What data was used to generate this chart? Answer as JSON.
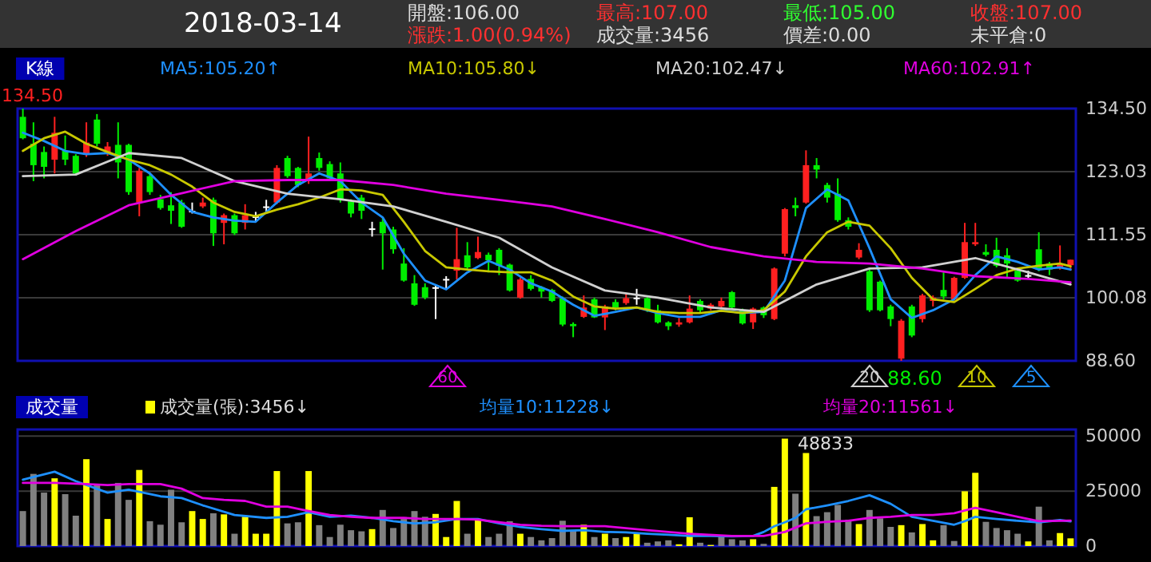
{
  "chart_data": [
    {
      "type": "other",
      "title": "2018-03-14",
      "annotations": [
        "開盤:106.00",
        "最高:107.00",
        "最低:105.00",
        "收盤:107.00",
        "漲跌:1.00(0.94%)",
        "成交量:3456",
        "價差:0.00",
        "未平倉:0"
      ]
    },
    {
      "type": "candlestick",
      "title": "K線",
      "categories": [
        null,
        null,
        null,
        null,
        null,
        null,
        null,
        null,
        null,
        null,
        null,
        null,
        null,
        null,
        null,
        null,
        null,
        null,
        null,
        null,
        null,
        null,
        null,
        null,
        null,
        null,
        null,
        null,
        null,
        null,
        null,
        null,
        null,
        null,
        null,
        null,
        null,
        null,
        null,
        null,
        null,
        null,
        null,
        null,
        null,
        null,
        null,
        null,
        null,
        null,
        null,
        null,
        null,
        null,
        null,
        null,
        null,
        null,
        null,
        null,
        null,
        null,
        null,
        null,
        null,
        null,
        null,
        null,
        null,
        null,
        null,
        null,
        null,
        null,
        null,
        null,
        null,
        null,
        null,
        null,
        null,
        null,
        null,
        null,
        null,
        null,
        null,
        null,
        null,
        null,
        null,
        null,
        null,
        null,
        null,
        null,
        null,
        null,
        null,
        null
      ],
      "ohlc": [
        [
          133.0,
          134.5,
          128.9,
          129.1
        ],
        [
          128.1,
          132.0,
          121.3,
          124.2
        ],
        [
          126.6,
          127.6,
          121.8,
          123.9
        ],
        [
          125.2,
          133.0,
          122.7,
          130.1
        ],
        [
          126.8,
          129.6,
          124.2,
          125.2
        ],
        [
          125.9,
          126.2,
          122.3,
          122.7
        ],
        [
          126.2,
          132.0,
          125.7,
          128.3
        ],
        [
          132.5,
          133.5,
          127.6,
          128.1
        ],
        [
          126.4,
          128.4,
          125.9,
          127.6
        ],
        [
          127.9,
          132.0,
          121.8,
          124.7
        ],
        [
          127.9,
          128.1,
          118.8,
          119.3
        ],
        [
          117.4,
          123.7,
          114.9,
          123.2
        ],
        [
          122.2,
          122.7,
          118.8,
          119.3
        ],
        [
          118.0,
          118.8,
          116.1,
          116.4
        ],
        [
          116.9,
          119.3,
          113.5,
          115.9
        ],
        [
          117.4,
          117.9,
          112.8,
          113.0
        ],
        [
          115.9,
          117.4,
          115.4,
          115.9
        ],
        [
          116.7,
          118.3,
          116.4,
          117.4
        ],
        [
          117.9,
          118.3,
          109.5,
          111.8
        ],
        [
          113.7,
          115.4,
          109.8,
          115.1
        ],
        [
          115.1,
          115.4,
          111.5,
          111.8
        ],
        [
          113.7,
          117.1,
          112.5,
          115.1
        ],
        [
          114.9,
          115.7,
          113.9,
          114.9
        ],
        [
          116.7,
          117.9,
          115.4,
          116.7
        ],
        [
          117.4,
          124.2,
          117.1,
          123.7
        ],
        [
          125.5,
          125.9,
          121.9,
          122.2
        ],
        [
          123.7,
          123.9,
          120.2,
          120.6
        ],
        [
          121.6,
          129.4,
          120.8,
          122.7
        ],
        [
          125.5,
          126.5,
          123.2,
          123.7
        ],
        [
          124.4,
          124.9,
          121.3,
          121.8
        ],
        [
          122.7,
          124.7,
          117.4,
          117.9
        ],
        [
          117.6,
          118.0,
          114.7,
          115.4
        ],
        [
          118.3,
          118.8,
          114.4,
          115.9
        ],
        [
          112.7,
          113.9,
          111.2,
          112.7
        ],
        [
          113.9,
          114.7,
          105.2,
          111.8
        ],
        [
          112.5,
          113.0,
          108.1,
          108.9
        ],
        [
          106.3,
          109.1,
          103.0,
          103.2
        ],
        [
          102.7,
          104.2,
          98.6,
          98.8
        ],
        [
          102.0,
          102.7,
          99.8,
          100.1
        ],
        [
          102.0,
          102.4,
          96.2,
          102.0
        ],
        [
          103.5,
          104.0,
          101.7,
          103.5
        ],
        [
          105.0,
          112.8,
          103.4,
          107.1
        ],
        [
          107.8,
          110.2,
          105.3,
          105.6
        ],
        [
          107.3,
          111.2,
          107.1,
          108.4
        ],
        [
          107.9,
          108.3,
          104.7,
          106.9
        ],
        [
          108.8,
          109.1,
          104.2,
          105.9
        ],
        [
          106.1,
          106.3,
          101.2,
          101.4
        ],
        [
          100.1,
          103.7,
          99.9,
          103.4
        ],
        [
          103.5,
          104.2,
          101.4,
          101.7
        ],
        [
          102.0,
          102.2,
          100.1,
          101.2
        ],
        [
          101.5,
          101.7,
          99.3,
          99.5
        ],
        [
          100.0,
          100.3,
          94.9,
          95.2
        ],
        [
          95.3,
          95.6,
          92.9,
          94.9
        ],
        [
          96.6,
          100.5,
          96.4,
          98.3
        ],
        [
          99.8,
          100.1,
          96.4,
          96.5
        ],
        [
          96.5,
          98.8,
          94.2,
          98.5
        ],
        [
          99.3,
          99.8,
          97.8,
          98.3
        ],
        [
          99.1,
          100.8,
          98.8,
          100.0
        ],
        [
          100.1,
          101.7,
          98.8,
          100.1
        ],
        [
          100.0,
          100.3,
          97.5,
          97.8
        ],
        [
          97.8,
          98.8,
          95.4,
          95.6
        ],
        [
          95.6,
          95.8,
          94.2,
          94.9
        ],
        [
          95.2,
          96.4,
          94.8,
          95.6
        ],
        [
          95.6,
          100.5,
          95.4,
          98.1
        ],
        [
          99.5,
          99.8,
          97.2,
          97.8
        ],
        [
          98.1,
          99.1,
          97.8,
          98.8
        ],
        [
          98.5,
          100.1,
          98.1,
          99.5
        ],
        [
          101.1,
          101.3,
          98.1,
          98.3
        ],
        [
          97.8,
          98.1,
          95.2,
          95.4
        ],
        [
          95.6,
          98.3,
          94.4,
          98.1
        ],
        [
          98.3,
          98.5,
          96.4,
          96.9
        ],
        [
          96.2,
          105.6,
          96.0,
          105.4
        ],
        [
          108.1,
          116.4,
          107.6,
          116.2
        ],
        [
          116.9,
          118.3,
          114.9,
          116.4
        ],
        [
          117.4,
          126.9,
          117.2,
          124.2
        ],
        [
          124.2,
          125.5,
          121.8,
          123.4
        ],
        [
          120.6,
          121.0,
          117.4,
          118.3
        ],
        [
          119.0,
          121.8,
          113.9,
          114.2
        ],
        [
          114.2,
          114.7,
          112.5,
          113.0
        ],
        [
          107.4,
          110.0,
          107.1,
          108.8
        ],
        [
          104.9,
          105.2,
          97.5,
          97.8
        ],
        [
          103.0,
          103.2,
          97.6,
          97.8
        ],
        [
          98.5,
          98.8,
          94.9,
          96.2
        ],
        [
          89.0,
          96.2,
          88.6,
          95.9
        ],
        [
          98.5,
          98.8,
          92.9,
          93.2
        ],
        [
          96.2,
          100.8,
          95.6,
          100.5
        ],
        [
          99.5,
          100.5,
          98.5,
          100.1
        ],
        [
          101.5,
          104.7,
          99.8,
          100.3
        ],
        [
          99.8,
          103.9,
          99.6,
          103.7
        ],
        [
          103.7,
          113.7,
          103.5,
          110.2
        ],
        [
          109.8,
          113.7,
          109.5,
          110.2
        ],
        [
          108.4,
          109.8,
          107.6,
          107.9
        ],
        [
          108.8,
          111.0,
          105.6,
          105.9
        ],
        [
          107.8,
          109.1,
          103.7,
          106.3
        ],
        [
          105.0,
          105.4,
          103.0,
          103.2
        ],
        [
          104.2,
          105.0,
          103.7,
          104.2
        ],
        [
          108.9,
          112.0,
          104.9,
          105.2
        ],
        [
          106.3,
          106.6,
          104.2,
          105.2
        ],
        [
          105.4,
          109.6,
          105.2,
          106.3
        ],
        [
          106,
          107,
          105,
          107
        ]
      ],
      "series": [
        {
          "name": "MA5:105.20↑",
          "color": "#1e90ff",
          "type": "line",
          "values": [
            130.1,
            null,
            128.6,
            null,
            126.8,
            null,
            126.2,
            null,
            126.4,
            null,
            125.2,
            null,
            122.7,
            null,
            118.8,
            null,
            115.7,
            null,
            114.7,
            null,
            114.1,
            null,
            113.9,
            null,
            117.4,
            null,
            120.6,
            null,
            122.7,
            null,
            121.3,
            null,
            117.4,
            null,
            114.7,
            null,
            108.1,
            null,
            103.2,
            null,
            101.6,
            null,
            104.7,
            null,
            106.8,
            null,
            105.2,
            null,
            102.7,
            null,
            101.2,
            null,
            98.8,
            null,
            96.8,
            null,
            97.5,
            null,
            98.3,
            null,
            97.3,
            null,
            96.6,
            null,
            96.6,
            null,
            97.8,
            null,
            97.3,
            null,
            97.5,
            null,
            103.2,
            null,
            116.4,
            null,
            119.8,
            null,
            117.8,
            null,
            109.1,
            null,
            99.8,
            null,
            96.4,
            null,
            97.8,
            null,
            99.8,
            null,
            104.2,
            null,
            107.6,
            null,
            106.6,
            null,
            105.2,
            null,
            105.6,
            105.2
          ]
        },
        {
          "name": "MA10:105.80↓",
          "color": "#c8c800",
          "type": "line",
          "values": [
            126.8,
            null,
            129.1,
            null,
            130.3,
            null,
            128.1,
            null,
            126.6,
            null,
            125.2,
            null,
            124.2,
            null,
            122.5,
            null,
            120.3,
            null,
            117.4,
            null,
            115.7,
            null,
            114.9,
            null,
            116.1,
            null,
            117.1,
            null,
            118.3,
            null,
            119.8,
            null,
            119.6,
            null,
            118.8,
            null,
            113.9,
            null,
            108.6,
            null,
            105.6,
            null,
            105.2,
            null,
            104.9,
            null,
            104.7,
            null,
            104.7,
            null,
            103.2,
            null,
            100.3,
            null,
            98.5,
            null,
            98.1,
            null,
            98.3,
            null,
            97.5,
            null,
            97.3,
            null,
            97.3,
            null,
            97.7,
            null,
            97.3,
            null,
            97.8,
            null,
            101.2,
            null,
            107.6,
            null,
            112.0,
            null,
            113.9,
            null,
            113.2,
            null,
            109.1,
            null,
            103.7,
            null,
            99.8,
            null,
            99.3,
            null,
            101.7,
            null,
            104.2,
            null,
            105.4,
            null,
            105.9,
            null,
            106.3,
            105.8
          ]
        },
        {
          "name": "MA20:102.47↓",
          "color": "#d0d0d0",
          "type": "line",
          "values": [
            122.2,
            null,
            null,
            null,
            null,
            122.5,
            null,
            null,
            null,
            null,
            126.4,
            null,
            null,
            null,
            null,
            125.5,
            null,
            null,
            null,
            null,
            121.3,
            null,
            null,
            null,
            null,
            119.0,
            null,
            null,
            null,
            null,
            118.0,
            null,
            null,
            null,
            null,
            116.7,
            null,
            null,
            null,
            null,
            113.9,
            null,
            null,
            null,
            null,
            111.0,
            null,
            null,
            null,
            null,
            105.6,
            null,
            null,
            null,
            null,
            101.4,
            null,
            null,
            null,
            null,
            100.1,
            null,
            null,
            null,
            null,
            98.3,
            null,
            null,
            null,
            null,
            97.5,
            null,
            null,
            null,
            null,
            102.5,
            null,
            null,
            null,
            null,
            105.4,
            null,
            null,
            null,
            null,
            105.6,
            null,
            null,
            null,
            null,
            107.3,
            null,
            null,
            null,
            null,
            104.7,
            null,
            null,
            null,
            102.5
          ]
        },
        {
          "name": "MA60:102.91↑",
          "color": "#e000e0",
          "type": "line",
          "values": [
            107.1,
            null,
            null,
            null,
            null,
            112.2,
            null,
            null,
            null,
            null,
            116.9,
            null,
            null,
            null,
            null,
            119.1,
            null,
            null,
            null,
            null,
            121.3,
            null,
            null,
            null,
            null,
            121.5,
            null,
            null,
            null,
            null,
            121.5,
            null,
            null,
            null,
            null,
            120.6,
            null,
            null,
            null,
            null,
            119.0,
            null,
            null,
            null,
            null,
            117.9,
            null,
            null,
            null,
            null,
            116.7,
            null,
            null,
            null,
            null,
            114.4,
            null,
            null,
            null,
            null,
            112.0,
            null,
            null,
            null,
            null,
            109.3,
            null,
            null,
            null,
            null,
            107.6,
            null,
            null,
            null,
            null,
            106.6,
            null,
            null,
            null,
            null,
            106.3,
            null,
            null,
            null,
            null,
            105.4,
            null,
            null,
            null,
            null,
            104.0,
            null,
            null,
            null,
            null,
            103.5,
            null,
            null,
            null,
            102.9
          ]
        }
      ],
      "ylim": [
        88.6,
        134.5
      ],
      "yticks": [
        {
          "value": 88.6,
          "label": "88.60"
        },
        {
          "value": 100.08,
          "label": "100.08"
        },
        {
          "value": 111.55,
          "label": "111.55"
        },
        {
          "value": 123.03,
          "label": "123.03"
        },
        {
          "value": 134.5,
          "label": "134.50"
        }
      ],
      "grid": "y",
      "legend": "top",
      "annotations": [
        "134.50",
        "88.60",
        "60",
        "20",
        "10",
        "5"
      ]
    },
    {
      "type": "bar",
      "title": "成交量",
      "categories": [
        null,
        null,
        null,
        null,
        null,
        null,
        null,
        null,
        null,
        null,
        null,
        null,
        null,
        null,
        null,
        null,
        null,
        null,
        null,
        null,
        null,
        null,
        null,
        null,
        null,
        null,
        null,
        null,
        null,
        null,
        null,
        null,
        null,
        null,
        null,
        null,
        null,
        null,
        null,
        null,
        null,
        null,
        null,
        null,
        null,
        null,
        null,
        null,
        null,
        null,
        null,
        null,
        null,
        null,
        null,
        null,
        null,
        null,
        null,
        null,
        null,
        null,
        null,
        null,
        null,
        null,
        null,
        null,
        null,
        null,
        null,
        null,
        null,
        null,
        null,
        null,
        null,
        null,
        null,
        null,
        null,
        null,
        null,
        null,
        null,
        null,
        null,
        null,
        null,
        null,
        null,
        null,
        null,
        null,
        null,
        null,
        null,
        null,
        null,
        null
      ],
      "series": [
        {
          "name": "成交量(張):3456↓",
          "colors": [
            "#808080",
            "#808080",
            "#808080",
            "#ffff00",
            "#808080",
            "#808080",
            "#ffff00",
            "#808080",
            "#ffff00",
            "#808080",
            "#808080",
            "#ffff00",
            "#808080",
            "#808080",
            "#808080",
            "#808080",
            "#ffff00",
            "#ffff00",
            "#808080",
            "#ffff00",
            "#808080",
            "#ffff00",
            "#ffff00",
            "#ffff00",
            "#ffff00",
            "#808080",
            "#808080",
            "#ffff00",
            "#808080",
            "#808080",
            "#808080",
            "#808080",
            "#808080",
            "#ffff00",
            "#808080",
            "#808080",
            "#808080",
            "#808080",
            "#808080",
            "#ffff00",
            "#ffff00",
            "#ffff00",
            "#808080",
            "#ffff00",
            "#808080",
            "#808080",
            "#808080",
            "#ffff00",
            "#808080",
            "#808080",
            "#808080",
            "#808080",
            "#808080",
            "#ffff00",
            "#808080",
            "#ffff00",
            "#808080",
            "#ffff00",
            "#ffff00",
            "#808080",
            "#808080",
            "#808080",
            "#ffff00",
            "#ffff00",
            "#808080",
            "#ffff00",
            "#808080",
            "#808080",
            "#808080",
            "#ffff00",
            "#808080",
            "#ffff00",
            "#ffff00",
            "#808080",
            "#ffff00",
            "#808080",
            "#808080",
            "#808080",
            "#808080",
            "#ffff00",
            "#808080",
            "#808080",
            "#808080",
            "#ffff00",
            "#808080",
            "#ffff00",
            "#ffff00",
            "#808080",
            "#808080",
            "#ffff00",
            "#ffff00",
            "#808080",
            "#808080",
            "#808080",
            "#808080",
            "#ffff00",
            "#808080",
            "#808080",
            "#ffff00",
            "#ffff00"
          ],
          "values": [
            15900,
            32800,
            24300,
            30800,
            23600,
            13800,
            39500,
            27700,
            12300,
            28700,
            21000,
            34600,
            11300,
            9700,
            25600,
            10800,
            15900,
            12300,
            14900,
            14400,
            5600,
            13300,
            5600,
            5600,
            34100,
            10300,
            10800,
            34100,
            9500,
            4100,
            9700,
            7200,
            6700,
            7700,
            16400,
            8200,
            12300,
            15900,
            13300,
            14600,
            4100,
            20500,
            5600,
            12000,
            4100,
            5600,
            11300,
            5600,
            4100,
            2600,
            3600,
            11500,
            7200,
            9700,
            4100,
            5600,
            3600,
            4100,
            5600,
            1500,
            2100,
            2600,
            800,
            13100,
            1500,
            500,
            4600,
            3100,
            2600,
            3100,
            1000,
            26900,
            48833,
            23800,
            42300,
            13600,
            15400,
            18700,
            12000,
            10000,
            16400,
            12600,
            8700,
            9500,
            6200,
            10000,
            2600,
            9500,
            2300,
            24900,
            33300,
            11000,
            8200,
            7200,
            5600,
            2100,
            17900,
            2600,
            5900,
            3500
          ]
        },
        {
          "name": "均量10:11228↓",
          "color": "#1e90ff",
          "type": "line",
          "values": [
            30200,
            null,
            null,
            33800,
            null,
            29500,
            null,
            null,
            24300,
            null,
            25600,
            null,
            null,
            22600,
            null,
            21800,
            null,
            18500,
            null,
            null,
            14100,
            null,
            null,
            12800,
            null,
            13300,
            null,
            15400,
            null,
            13300,
            null,
            13800,
            null,
            12800,
            null,
            11300,
            null,
            10300,
            null,
            10800,
            null,
            12300,
            null,
            12300,
            null,
            10300,
            null,
            8700,
            null,
            7700,
            null,
            6900,
            null,
            7200,
            null,
            6400,
            null,
            6200,
            null,
            5600,
            null,
            5100,
            null,
            4600,
            null,
            4600,
            null,
            4400,
            null,
            4600,
            6400,
            9000,
            10800,
            12800,
            16700,
            null,
            18500,
            null,
            20500,
            null,
            23100,
            null,
            19200,
            null,
            13300,
            null,
            11500,
            null,
            9700,
            11300,
            13300,
            null,
            12300,
            null,
            11500,
            null,
            10800,
            null,
            11800,
            11200
          ]
        },
        {
          "name": "均量20:11561↓",
          "color": "#e000e0",
          "type": "line",
          "values": [
            28700,
            null,
            null,
            28700,
            null,
            null,
            28200,
            null,
            27700,
            null,
            28200,
            null,
            null,
            28200,
            null,
            26100,
            null,
            21800,
            null,
            21000,
            null,
            20500,
            null,
            17900,
            null,
            17900,
            null,
            15900,
            null,
            14100,
            null,
            13300,
            null,
            12800,
            null,
            null,
            12800,
            null,
            12300,
            null,
            null,
            12300,
            null,
            12000,
            null,
            10800,
            null,
            9700,
            null,
            9200,
            null,
            9000,
            null,
            null,
            null,
            9000,
            null,
            null,
            null,
            7200,
            null,
            null,
            null,
            5600,
            null,
            null,
            null,
            4600,
            null,
            null,
            4600,
            null,
            6400,
            null,
            10300,
            null,
            11000,
            null,
            11500,
            null,
            12800,
            null,
            13300,
            null,
            14100,
            null,
            14100,
            null,
            14900,
            null,
            17400,
            null,
            15400,
            null,
            13300,
            null,
            11300,
            null,
            null,
            11600
          ]
        }
      ],
      "ylim": [
        0,
        53000
      ],
      "yticks": [
        0,
        25000,
        50000
      ],
      "grid": "y",
      "legend": "top",
      "annotations": [
        "48833"
      ]
    }
  ]
}
